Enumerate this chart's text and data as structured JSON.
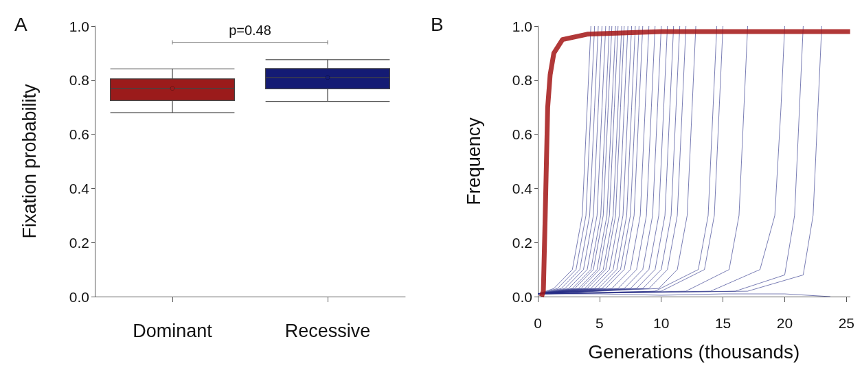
{
  "chart_data": [
    {
      "type": "box",
      "title": "A",
      "ylabel": "Fixation probability",
      "categories": [
        "Dominant",
        "Recessive"
      ],
      "colors": [
        "#9b1b1b",
        "#141b74"
      ],
      "boxes": [
        {
          "low": 0.68,
          "q1": 0.725,
          "median": 0.77,
          "q3": 0.805,
          "high": 0.842,
          "mean": 0.77
        },
        {
          "low": 0.722,
          "q1": 0.768,
          "median": 0.81,
          "q3": 0.843,
          "high": 0.876,
          "mean": 0.81
        }
      ],
      "ylim": [
        0,
        1
      ],
      "yticks": [
        {
          "value": 0,
          "label": "0.0"
        },
        {
          "value": 0.2,
          "label": "0.2"
        },
        {
          "value": 0.4,
          "label": "0.4"
        },
        {
          "value": 0.6,
          "label": "0.6"
        },
        {
          "value": 0.8,
          "label": "0.8"
        },
        {
          "value": 1,
          "label": "1.0"
        }
      ],
      "annotations": [
        "p=0.48"
      ],
      "grid": false
    },
    {
      "type": "line",
      "title": "B",
      "xlabel": "Generations (thousands)",
      "ylabel": "Frequency",
      "grid": false,
      "xlim": [
        0,
        25.3
      ],
      "xticks": [
        0,
        5,
        10,
        15,
        20,
        25
      ],
      "ylim": [
        0,
        1
      ],
      "yticks": [
        {
          "value": 0,
          "label": "0.0"
        },
        {
          "value": 0.2,
          "label": "0.2"
        },
        {
          "value": 0.4,
          "label": "0.4"
        },
        {
          "value": 0.6,
          "label": "0.6"
        },
        {
          "value": 0.8,
          "label": "0.8"
        },
        {
          "value": 1,
          "label": "1.0"
        }
      ],
      "series": [
        {
          "color": "#2a3088",
          "x": [
            0,
            1.3,
            2.8,
            3.6,
            4.0,
            4.3
          ],
          "values": [
            0.01,
            0.03,
            0.1,
            0.3,
            0.7,
            1.0
          ]
        },
        {
          "color": "#2a3088",
          "x": [
            0,
            1.6,
            3.1,
            3.9,
            4.3,
            4.6
          ],
          "values": [
            0.01,
            0.03,
            0.1,
            0.3,
            0.7,
            1.0
          ]
        },
        {
          "color": "#2a3088",
          "x": [
            0,
            1.9,
            3.4,
            4.2,
            4.6,
            4.9
          ],
          "values": [
            0.01,
            0.03,
            0.1,
            0.3,
            0.7,
            1.0
          ]
        },
        {
          "color": "#2a3088",
          "x": [
            0,
            2.2,
            3.7,
            4.5,
            4.9,
            5.2
          ],
          "values": [
            0.01,
            0.03,
            0.1,
            0.3,
            0.7,
            1.0
          ]
        },
        {
          "color": "#2a3088",
          "x": [
            0,
            2.5,
            4.0,
            4.8,
            5.2,
            5.5
          ],
          "values": [
            0.01,
            0.03,
            0.1,
            0.3,
            0.7,
            1.0
          ]
        },
        {
          "color": "#2a3088",
          "x": [
            0,
            2.8,
            4.3,
            5.1,
            5.5,
            5.8
          ],
          "values": [
            0.01,
            0.03,
            0.1,
            0.3,
            0.7,
            1.0
          ]
        },
        {
          "color": "#2a3088",
          "x": [
            0,
            3.0,
            4.5,
            5.3,
            5.7,
            6.0
          ],
          "values": [
            0.01,
            0.03,
            0.1,
            0.3,
            0.7,
            1.0
          ]
        },
        {
          "color": "#2a3088",
          "x": [
            0,
            3.3,
            4.8,
            5.6,
            6.0,
            6.3
          ],
          "values": [
            0.01,
            0.03,
            0.1,
            0.3,
            0.7,
            1.0
          ]
        },
        {
          "color": "#2a3088",
          "x": [
            0,
            3.5,
            5.0,
            5.8,
            6.2,
            6.5
          ],
          "values": [
            0.01,
            0.03,
            0.1,
            0.3,
            0.7,
            1.0
          ]
        },
        {
          "color": "#2a3088",
          "x": [
            0,
            3.8,
            5.3,
            6.1,
            6.5,
            6.8
          ],
          "values": [
            0.01,
            0.03,
            0.1,
            0.3,
            0.7,
            1.0
          ]
        },
        {
          "color": "#2a3088",
          "x": [
            0,
            4.0,
            5.5,
            6.3,
            6.7,
            7.0
          ],
          "values": [
            0.01,
            0.03,
            0.1,
            0.3,
            0.7,
            1.0
          ]
        },
        {
          "color": "#2a3088",
          "x": [
            0,
            4.3,
            5.8,
            6.6,
            7.0,
            7.3
          ],
          "values": [
            0.01,
            0.03,
            0.1,
            0.3,
            0.7,
            1.0
          ]
        },
        {
          "color": "#2a3088",
          "x": [
            0,
            4.6,
            6.1,
            6.9,
            7.3,
            7.6
          ],
          "values": [
            0.01,
            0.03,
            0.1,
            0.3,
            0.7,
            1.0
          ]
        },
        {
          "color": "#2a3088",
          "x": [
            0,
            4.9,
            6.4,
            7.2,
            7.6,
            7.9
          ],
          "values": [
            0.01,
            0.03,
            0.1,
            0.3,
            0.7,
            1.0
          ]
        },
        {
          "color": "#2a3088",
          "x": [
            0,
            5.2,
            6.7,
            7.5,
            7.9,
            8.2
          ],
          "values": [
            0.01,
            0.03,
            0.1,
            0.3,
            0.7,
            1.0
          ]
        },
        {
          "color": "#2a3088",
          "x": [
            0,
            5.5,
            7.0,
            7.8,
            8.2,
            8.5
          ],
          "values": [
            0.01,
            0.03,
            0.1,
            0.3,
            0.7,
            1.0
          ]
        },
        {
          "color": "#2a3088",
          "x": [
            0,
            6.0,
            7.5,
            8.3,
            8.7,
            9.0
          ],
          "values": [
            0.01,
            0.03,
            0.1,
            0.3,
            0.7,
            1.0
          ]
        },
        {
          "color": "#2a3088",
          "x": [
            0,
            6.5,
            8.0,
            8.8,
            9.2,
            9.5
          ],
          "values": [
            0.01,
            0.03,
            0.1,
            0.3,
            0.7,
            1.0
          ]
        },
        {
          "color": "#2a3088",
          "x": [
            0,
            7.0,
            8.5,
            9.3,
            9.7,
            10.0
          ],
          "values": [
            0.01,
            0.03,
            0.1,
            0.3,
            0.7,
            1.0
          ]
        },
        {
          "color": "#2a3088",
          "x": [
            0,
            7.5,
            9.0,
            9.8,
            10.2,
            10.5
          ],
          "values": [
            0.01,
            0.03,
            0.1,
            0.3,
            0.7,
            1.0
          ]
        },
        {
          "color": "#2a3088",
          "x": [
            0,
            8.0,
            9.5,
            10.3,
            10.7,
            11.0
          ],
          "values": [
            0.01,
            0.03,
            0.1,
            0.3,
            0.7,
            1.0
          ]
        },
        {
          "color": "#2a3088",
          "x": [
            0,
            8.5,
            10.0,
            10.8,
            11.2,
            11.5
          ],
          "values": [
            0.01,
            0.03,
            0.1,
            0.3,
            0.7,
            1.0
          ]
        },
        {
          "color": "#2a3088",
          "x": [
            0,
            9.0,
            10.5,
            11.3,
            11.7,
            12.0
          ],
          "values": [
            0.01,
            0.03,
            0.1,
            0.3,
            0.7,
            1.0
          ]
        },
        {
          "color": "#2a3088",
          "x": [
            0,
            9.8,
            11.3,
            12.1,
            12.5,
            12.8
          ],
          "values": [
            0.01,
            0.03,
            0.1,
            0.3,
            0.7,
            1.0
          ]
        },
        {
          "color": "#2a3088",
          "x": [
            0,
            9.5,
            13.0,
            13.8,
            14.2,
            14.5
          ],
          "values": [
            0.01,
            0.02,
            0.1,
            0.3,
            0.7,
            1.0
          ]
        },
        {
          "color": "#2a3088",
          "x": [
            0,
            10.0,
            13.5,
            14.3,
            14.7,
            15.0
          ],
          "values": [
            0.01,
            0.02,
            0.1,
            0.3,
            0.7,
            1.0
          ]
        },
        {
          "color": "#2a3088",
          "x": [
            0,
            12.0,
            15.5,
            16.3,
            16.7,
            17.0
          ],
          "values": [
            0.01,
            0.02,
            0.1,
            0.3,
            0.7,
            1.0
          ]
        },
        {
          "color": "#2a3088",
          "x": [
            0,
            14.0,
            18.0,
            19.2,
            19.7,
            20.0
          ],
          "values": [
            0.01,
            0.02,
            0.1,
            0.3,
            0.7,
            1.0
          ]
        },
        {
          "color": "#2a3088",
          "x": [
            0,
            16.0,
            20.0,
            20.8,
            21.2,
            21.5
          ],
          "values": [
            0.01,
            0.02,
            0.08,
            0.3,
            0.7,
            1.0
          ]
        },
        {
          "color": "#2a3088",
          "x": [
            0,
            17.0,
            21.5,
            22.3,
            22.7,
            23.0
          ],
          "values": [
            0.01,
            0.02,
            0.08,
            0.3,
            0.7,
            1.0
          ]
        },
        {
          "color": "#2a3088",
          "x": [
            0,
            5,
            10,
            15,
            20,
            23.7
          ],
          "values": [
            0.01,
            0.01,
            0.005,
            0.01,
            0.01,
            0.0
          ]
        },
        {
          "color": "#a31515",
          "x": [
            0.3,
            0.45,
            0.6,
            0.8,
            1.0,
            1.3,
            2,
            4,
            10,
            25.3
          ],
          "values": [
            0,
            0.02,
            0.3,
            0.7,
            0.82,
            0.9,
            0.95,
            0.97,
            0.98,
            0.98
          ]
        }
      ]
    }
  ]
}
